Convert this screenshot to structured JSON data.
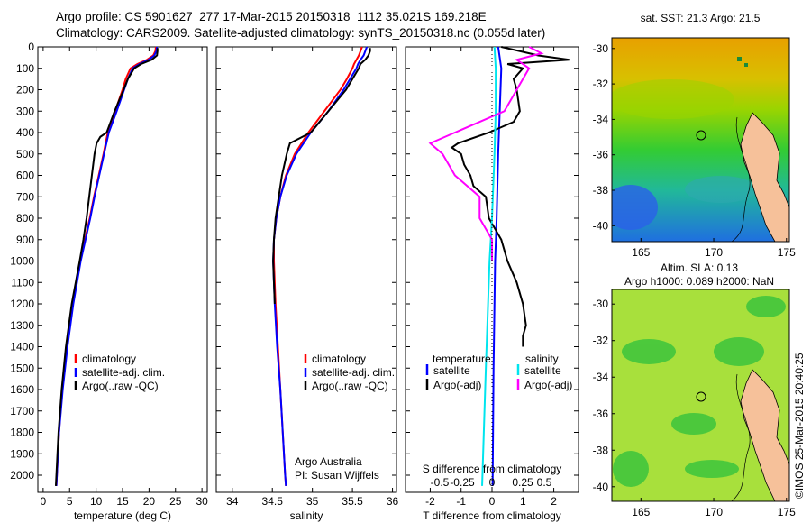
{
  "header": {
    "line1": "Argo profile: CS 5901627_277 17-Mar-2015 20150318_1112 35.021S 169.218E",
    "line2": "Climatology: CARS2009. Satellite-adjusted climatology: synTS_20150318.nc (0.055d later)"
  },
  "credit": {
    "institution": "Argo Australia",
    "pi": "PI: Susan Wijffels"
  },
  "map_sst": {
    "title": "sat. SST: 21.3 Argo: 21.5",
    "yticks": [
      "-30",
      "-32",
      "-34",
      "-36",
      "-38",
      "-40"
    ],
    "xticks": [
      "165",
      "170",
      "175"
    ]
  },
  "map_sla": {
    "title1": "Altim. SLA: 0.13",
    "title2": "Argo h1000: 0.089 h2000: NaN",
    "yticks": [
      "-30",
      "-32",
      "-34",
      "-36",
      "-38",
      "-40"
    ],
    "xticks": [
      "165",
      "170",
      "175"
    ]
  },
  "timestamp": "©IMOS 25-Mar-2015 20:40:25",
  "colors": {
    "climatology": "#ff0000",
    "satellite": "#0000ff",
    "argo": "#000000",
    "sal_sat": "#00e5ee",
    "sal_argo": "#ff00ff"
  },
  "chart_data": [
    {
      "type": "line",
      "name": "temperature",
      "xlabel": "temperature (deg C)",
      "ylabel": "",
      "xlim": [
        -1,
        31
      ],
      "ylim": [
        2080,
        0
      ],
      "xticks": [
        0,
        5,
        10,
        15,
        20,
        25,
        30
      ],
      "yticks": [
        0,
        100,
        200,
        300,
        400,
        500,
        600,
        700,
        800,
        900,
        1000,
        1100,
        1200,
        1300,
        1400,
        1500,
        1600,
        1700,
        1800,
        1900,
        2000
      ],
      "legend": [
        "climatology",
        "satellite-adj. clim.",
        "Argo(..raw -QC)"
      ],
      "legend_position": "lower-left",
      "series": [
        {
          "name": "climatology",
          "color": "#ff0000",
          "depth": [
            0,
            20,
            40,
            60,
            80,
            100,
            150,
            200,
            300,
            400,
            500,
            600,
            700,
            800,
            900,
            1000,
            1200,
            1400,
            1600,
            1800,
            2000,
            2050
          ],
          "values": [
            21.3,
            21.2,
            20.8,
            19.6,
            17.8,
            16.5,
            15.6,
            15.0,
            13.6,
            12.2,
            11.4,
            10.5,
            9.6,
            8.8,
            7.9,
            7.0,
            5.6,
            4.5,
            3.6,
            3.0,
            2.6,
            2.5
          ]
        },
        {
          "name": "satellite-adj. clim.",
          "color": "#0000ff",
          "depth": [
            0,
            20,
            40,
            60,
            80,
            100,
            150,
            200,
            300,
            400,
            500,
            600,
            700,
            800,
            900,
            1000,
            1200,
            1400,
            1600,
            1800,
            2000,
            2050
          ],
          "values": [
            21.5,
            21.4,
            21.0,
            19.9,
            18.2,
            16.9,
            16.0,
            15.3,
            13.9,
            12.4,
            11.5,
            10.6,
            9.7,
            8.9,
            8.0,
            7.1,
            5.7,
            4.6,
            3.7,
            3.0,
            2.6,
            2.5
          ]
        },
        {
          "name": "Argo(..raw -QC)",
          "color": "#000000",
          "depth": [
            5,
            20,
            40,
            60,
            80,
            100,
            150,
            200,
            300,
            400,
            420,
            450,
            500,
            600,
            700,
            800,
            900,
            1000,
            1200,
            1400,
            1600,
            1800,
            2000,
            2050
          ],
          "values": [
            21.6,
            21.6,
            21.5,
            20.5,
            18.5,
            17.2,
            16.0,
            15.2,
            13.5,
            12.0,
            10.8,
            10.1,
            9.7,
            9.2,
            8.7,
            8.2,
            7.6,
            6.9,
            5.4,
            4.3,
            3.5,
            2.9,
            2.5,
            2.4
          ]
        }
      ]
    },
    {
      "type": "line",
      "name": "salinity",
      "xlabel": "salinity",
      "ylabel": "",
      "xlim": [
        33.8,
        36.05
      ],
      "ylim": [
        2080,
        0
      ],
      "xticks": [
        34,
        34.5,
        35,
        35.5,
        36
      ],
      "legend": [
        "climatology",
        "satellite-adj. clim.",
        "Argo(..raw -QC)"
      ],
      "legend_position": "lower-right",
      "series": [
        {
          "name": "climatology",
          "color": "#ff0000",
          "depth": [
            0,
            20,
            40,
            60,
            80,
            100,
            150,
            200,
            300,
            400,
            500,
            600,
            700,
            800,
            900,
            1000,
            1100,
            1200,
            1400,
            1600,
            1800,
            2000,
            2050
          ],
          "values": [
            35.62,
            35.6,
            35.58,
            35.55,
            35.52,
            35.5,
            35.43,
            35.35,
            35.15,
            34.95,
            34.78,
            34.67,
            34.6,
            34.55,
            34.52,
            34.52,
            34.53,
            34.54,
            34.57,
            34.6,
            34.63,
            34.66,
            34.67
          ]
        },
        {
          "name": "satellite-adj. clim.",
          "color": "#0000ff",
          "depth": [
            0,
            20,
            40,
            60,
            80,
            100,
            150,
            200,
            300,
            400,
            500,
            600,
            700,
            800,
            900,
            1000,
            1100,
            1200,
            1400,
            1600,
            1800,
            2000,
            2050
          ],
          "values": [
            35.68,
            35.66,
            35.64,
            35.6,
            35.57,
            35.55,
            35.47,
            35.39,
            35.2,
            34.98,
            34.8,
            34.68,
            34.6,
            34.55,
            34.52,
            34.51,
            34.52,
            34.53,
            34.56,
            34.6,
            34.63,
            34.66,
            34.67
          ]
        },
        {
          "name": "Argo(..raw -QC)",
          "color": "#000000",
          "depth": [
            5,
            20,
            40,
            60,
            80,
            100,
            150,
            200,
            300,
            400,
            450,
            500,
            600,
            700,
            800,
            900,
            1000,
            1100,
            1200
          ],
          "values": [
            35.72,
            35.72,
            35.7,
            35.66,
            35.6,
            35.58,
            35.5,
            35.42,
            35.2,
            34.98,
            34.72,
            34.68,
            34.62,
            34.58,
            34.54,
            34.52,
            34.51,
            34.52,
            34.53
          ]
        }
      ]
    },
    {
      "type": "line",
      "name": "difference",
      "xlabel": "T difference from climatology",
      "x2label": "S difference from climatology",
      "xlim": [
        -2.8,
        2.8
      ],
      "ylim": [
        2080,
        0
      ],
      "xticks": [
        -2,
        -1,
        0,
        1,
        2
      ],
      "x2ticks": [
        "-0.5",
        "-0.25",
        "0",
        "0.25",
        "0.5"
      ],
      "legend_temperature": {
        "title": "temperature",
        "satellite": "satellite",
        "argo": "Argo(-adj)"
      },
      "legend_salinity": {
        "title": "salinity",
        "satellite": "satellite",
        "argo": "Argo(-adj)"
      },
      "series": [
        {
          "name": "temperature satellite",
          "color": "#0000ff",
          "depth": [
            0,
            50,
            100,
            300,
            500,
            800,
            1000,
            1200,
            1500,
            2050
          ],
          "values": [
            0.2,
            0.25,
            0.3,
            0.25,
            0.2,
            0.15,
            0.1,
            0.08,
            0.05,
            0.02
          ]
        },
        {
          "name": "temperature Argo(-adj)",
          "color": "#000000",
          "depth": [
            0,
            40,
            60,
            80,
            100,
            150,
            200,
            300,
            350,
            400,
            450,
            470,
            500,
            550,
            600,
            650,
            700,
            800,
            900,
            1000,
            1100,
            1200,
            1300,
            1350,
            1400
          ],
          "values": [
            0.3,
            1.5,
            2.5,
            0.5,
            1.0,
            0.7,
            0.8,
            0.9,
            0.7,
            -0.1,
            -1.1,
            -1.3,
            -1.0,
            -0.9,
            -0.7,
            -0.6,
            -0.2,
            -0.1,
            0.3,
            0.5,
            0.8,
            1.0,
            1.1,
            1.0,
            1.0
          ]
        },
        {
          "name": "salinity satellite",
          "color": "#00e5ee",
          "depth": [
            0,
            100,
            300,
            500,
            800,
            1000,
            1500,
            2050
          ],
          "values": [
            0.02,
            0.03,
            0.03,
            0.02,
            0.0,
            -0.02,
            -0.05,
            -0.08
          ]
        },
        {
          "name": "salinity Argo(-adj)",
          "color": "#ff00ff",
          "depth": [
            0,
            30,
            60,
            100,
            200,
            300,
            400,
            450,
            500,
            600,
            700,
            800,
            900,
            1000
          ],
          "values": [
            0.3,
            0.4,
            0.2,
            0.3,
            0.2,
            0.1,
            -0.3,
            -0.5,
            -0.4,
            -0.3,
            -0.1,
            -0.1,
            0.0,
            0.0
          ]
        }
      ]
    }
  ]
}
